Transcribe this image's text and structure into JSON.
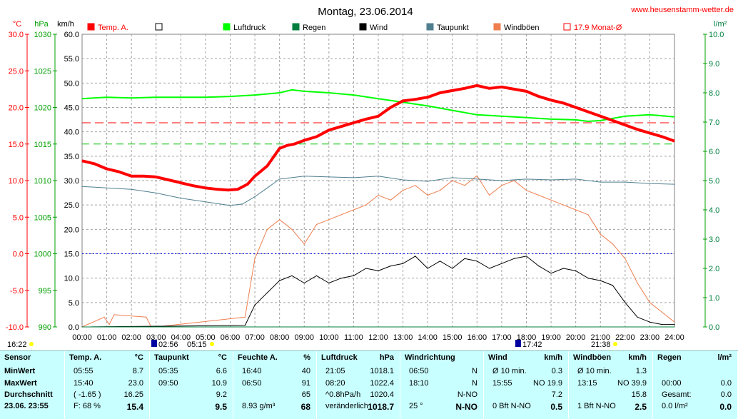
{
  "header": {
    "date_title": "Montag, 23.06.2014",
    "site": "www.heusenstamm-wetter.de"
  },
  "axes": {
    "unit_temp": "°C",
    "unit_press": "hPa",
    "unit_wind": "km/h",
    "unit_rain": "l/m²",
    "temp_ticks": [
      "30.0",
      "25.0",
      "20.0",
      "15.0",
      "10.0",
      "5.0",
      "0.0",
      "-5.0",
      "-10.0"
    ],
    "press_ticks": [
      "1030",
      "1025",
      "1020",
      "1015",
      "1010",
      "1005",
      "1000",
      "995",
      "990"
    ],
    "wind_ticks": [
      "60.0",
      "55.0",
      "50.0",
      "45.0",
      "40.0",
      "35.0",
      "30.0",
      "25.0",
      "20.0",
      "15.0",
      "10.0",
      "5.0",
      "0.0"
    ],
    "rain_ticks": [
      "10.0",
      "9.0",
      "8.0",
      "7.0",
      "6.0",
      "5.0",
      "4.0",
      "3.0",
      "2.0",
      "1.0",
      "0.0"
    ],
    "time_ticks": [
      "00:00",
      "01:00",
      "02:00",
      "03:00",
      "04:00",
      "05:00",
      "06:00",
      "07:00",
      "08:00",
      "09:00",
      "10:00",
      "11:00",
      "12:00",
      "13:00",
      "14:00",
      "15:00",
      "16:00",
      "17:00",
      "18:00",
      "19:00",
      "20:00",
      "21:00",
      "22:00",
      "23:00",
      "24:00"
    ]
  },
  "legend": [
    {
      "label": "Temp. A.",
      "color": "#ff0000",
      "style": "filled"
    },
    {
      "label": "",
      "color": "#000000",
      "style": "hollow"
    },
    {
      "label": "Luftdruck",
      "color": "#00ff00",
      "style": "filled"
    },
    {
      "label": "Regen",
      "color": "#007f3f",
      "style": "filled"
    },
    {
      "label": "Wind",
      "color": "#000000",
      "style": "filled"
    },
    {
      "label": "Taupunkt",
      "color": "#4f7f8f",
      "style": "filled"
    },
    {
      "label": "Windböen",
      "color": "#ef7f4f",
      "style": "filled"
    },
    {
      "label": "17.9 Monat-Ø",
      "color": "#ff0000",
      "style": "hollow"
    }
  ],
  "markers": {
    "day_start": "16:22",
    "sun_left": "02:56",
    "sunrise": "05:15",
    "sunset": "21:38",
    "sun_right": "17:42"
  },
  "chart_data": {
    "type": "line",
    "title": "Montag, 23.06.2014",
    "x_unit": "hour",
    "xlim": [
      0,
      24
    ],
    "ylim_temp": [
      -10,
      30
    ],
    "ylim_press": [
      990,
      1030
    ],
    "ylim_wind": [
      0,
      60
    ],
    "ylim_rain": [
      0,
      10
    ],
    "month_avg_temp": 17.9,
    "series": [
      {
        "name": "Temp. A.",
        "axis": "temp",
        "color": "#ff0000",
        "x": [
          0,
          0.5,
          1,
          1.5,
          2,
          2.5,
          3,
          3.5,
          4,
          4.5,
          5,
          5.5,
          5.92,
          6.3,
          6.7,
          7.0,
          7.5,
          8.0,
          8.3,
          8.6,
          9,
          9.5,
          10,
          10.5,
          11,
          11.5,
          12,
          12.5,
          13,
          13.5,
          14,
          14.5,
          15,
          15.5,
          16,
          16.5,
          17,
          17.5,
          18,
          18.5,
          19,
          19.5,
          20,
          20.5,
          21,
          21.5,
          22,
          22.5,
          23,
          23.5,
          24
        ],
        "y": [
          12.7,
          12.3,
          11.6,
          11.2,
          10.6,
          10.6,
          10.5,
          10.1,
          9.7,
          9.3,
          9.0,
          8.8,
          8.7,
          8.8,
          9.5,
          10.6,
          12.0,
          14.4,
          14.8,
          15.0,
          15.5,
          16.0,
          16.9,
          17.4,
          17.9,
          18.4,
          18.8,
          20.0,
          20.9,
          21.1,
          21.4,
          22.0,
          22.3,
          22.6,
          23.0,
          22.6,
          22.8,
          22.5,
          22.2,
          21.5,
          21.0,
          20.6,
          20.0,
          19.4,
          18.8,
          18.2,
          17.6,
          17.0,
          16.5,
          16.0,
          15.4
        ]
      },
      {
        "name": "Luftdruck",
        "axis": "press",
        "color": "#00ff00",
        "x": [
          0,
          1,
          2,
          3,
          4,
          5,
          6,
          7,
          8,
          8.5,
          9,
          10,
          11,
          12,
          13,
          14,
          15,
          16,
          17,
          18,
          19,
          20,
          20.5,
          21,
          22,
          23,
          24
        ],
        "y": [
          1021.2,
          1021.4,
          1021.3,
          1021.4,
          1021.4,
          1021.4,
          1021.5,
          1021.7,
          1022.0,
          1022.4,
          1022.2,
          1022.0,
          1021.7,
          1021.2,
          1020.7,
          1020.2,
          1019.6,
          1019.0,
          1018.8,
          1018.6,
          1018.4,
          1018.3,
          1018.1,
          1018.2,
          1018.8,
          1019.0,
          1018.7
        ]
      },
      {
        "name": "Taupunkt",
        "axis": "temp",
        "color": "#4f7f8f",
        "x": [
          0,
          1,
          2,
          3,
          4,
          5,
          6,
          6.5,
          7,
          7.5,
          8,
          9,
          10,
          11,
          12,
          13,
          14,
          15,
          16,
          17,
          18,
          19,
          20,
          21,
          22,
          23,
          24
        ],
        "y": [
          9.2,
          9.0,
          8.8,
          8.3,
          7.6,
          7.1,
          6.6,
          6.8,
          7.8,
          9.0,
          10.2,
          10.6,
          10.5,
          10.4,
          10.6,
          10.1,
          9.9,
          10.4,
          10.2,
          10.0,
          10.2,
          10.1,
          10.2,
          9.8,
          9.8,
          9.6,
          9.5
        ]
      },
      {
        "name": "Wind",
        "axis": "wind",
        "color": "#000000",
        "x": [
          0,
          6.6,
          7.0,
          7.5,
          8,
          8.5,
          9,
          9.5,
          10,
          10.5,
          11,
          11.5,
          12,
          12.5,
          13,
          13.5,
          14,
          14.5,
          15,
          15.5,
          16,
          16.5,
          17,
          17.5,
          18,
          18.5,
          19,
          19.5,
          20,
          20.5,
          21,
          21.5,
          22,
          22.5,
          23,
          23.5,
          24
        ],
        "y": [
          0,
          0.3,
          4.5,
          7.0,
          9.5,
          10.5,
          9.0,
          10.5,
          9.0,
          10.0,
          10.5,
          12.0,
          11.5,
          12.5,
          13.0,
          14.5,
          12.0,
          13.5,
          12.0,
          14.0,
          13.5,
          12.0,
          13.0,
          14.0,
          14.5,
          12.5,
          11.0,
          12.0,
          11.5,
          10.0,
          9.5,
          8.5,
          5.0,
          2.0,
          1.0,
          0.5,
          0.5
        ]
      },
      {
        "name": "Windböen",
        "axis": "wind",
        "color": "#ef7f4f",
        "x": [
          0,
          0.9,
          1.1,
          1.3,
          2.6,
          2.8,
          3.0,
          6.6,
          7.0,
          7.5,
          8,
          8.5,
          9,
          9.5,
          10,
          10.5,
          11,
          11.5,
          12,
          12.5,
          13,
          13.5,
          14,
          14.5,
          15,
          15.5,
          16,
          16.5,
          17,
          17.5,
          18,
          18.5,
          19,
          19.5,
          20,
          20.5,
          21,
          21.5,
          22,
          22.5,
          23,
          23.5,
          24
        ],
        "y": [
          0,
          2.0,
          0.5,
          2.5,
          2.0,
          0,
          0,
          2.0,
          14.0,
          20.0,
          22.0,
          20.0,
          17.0,
          21.0,
          22.0,
          23.0,
          24.0,
          25.0,
          27.0,
          26.0,
          28.0,
          29.0,
          27.0,
          28.0,
          30.0,
          29.0,
          31.0,
          27.0,
          29.0,
          30.0,
          28.0,
          27.0,
          26.0,
          25.0,
          24.0,
          23.0,
          19.0,
          17.0,
          14.0,
          9.0,
          5.0,
          3.0,
          1.0
        ]
      },
      {
        "name": "Regen",
        "axis": "rain",
        "color": "#007f3f",
        "x": [
          0,
          24
        ],
        "y": [
          0,
          0
        ]
      }
    ]
  },
  "panel": {
    "columns": [
      {
        "title": "Sensor",
        "unit": "",
        "rows": [
          [
            "MinWert",
            ""
          ],
          [
            "MaxWert",
            ""
          ],
          [
            "Durchschnitt",
            ""
          ],
          [
            "23.06. 23:55",
            ""
          ]
        ]
      },
      {
        "title": "Temp. A.",
        "unit": "°C",
        "rows": [
          [
            "05:55",
            "8.7"
          ],
          [
            "15:40",
            "23.0"
          ],
          [
            "( -1.65 )",
            "16.25"
          ],
          [
            "F: 68 %",
            "15.4"
          ]
        ]
      },
      {
        "title": "Taupunkt",
        "unit": "°C",
        "rows": [
          [
            "05:35",
            "6.6"
          ],
          [
            "09:50",
            "10.9"
          ],
          [
            "",
            "9.2"
          ],
          [
            "",
            "9.5"
          ]
        ]
      },
      {
        "title": "Feuchte A.",
        "unit": "%",
        "rows": [
          [
            "16:40",
            "40"
          ],
          [
            "06:50",
            "91"
          ],
          [
            "",
            "65"
          ],
          [
            "8.93 g/m³",
            "68"
          ]
        ]
      },
      {
        "title": "Luftdruck",
        "unit": "hPa",
        "rows": [
          [
            "21:05",
            "1018.1"
          ],
          [
            "08:20",
            "1022.4"
          ],
          [
            "^0.8hPa/h",
            "1020.4"
          ],
          [
            "veränderlich",
            "1018.7"
          ]
        ]
      },
      {
        "title": "Windrichtung",
        "unit": "",
        "rows": [
          [
            "06:50",
            "N"
          ],
          [
            "18:10",
            "N"
          ],
          [
            "",
            "N-NO"
          ],
          [
            "25 °",
            "N-NO"
          ]
        ]
      },
      {
        "title": "Wind",
        "unit": "km/h",
        "rows": [
          [
            "Ø 10 min.",
            "0.3"
          ],
          [
            "15:55",
            "NO 19.9"
          ],
          [
            "",
            "7.2"
          ],
          [
            "0 Bft N-NO",
            "0.5"
          ]
        ]
      },
      {
        "title": "Windböen",
        "unit": "km/h",
        "rows": [
          [
            "Ø 10 min.",
            "1.3"
          ],
          [
            "13:15",
            "NO 39.9"
          ],
          [
            "",
            "15.8"
          ],
          [
            "1 Bft N-NO",
            "2.5"
          ]
        ]
      },
      {
        "title": "Regen",
        "unit": "l/m²",
        "rows": [
          [
            "",
            ""
          ],
          [
            "00:00",
            "0.0"
          ],
          [
            "Gesamt:",
            "0.0"
          ],
          [
            "0.0 l/m²",
            "0.0"
          ]
        ]
      }
    ]
  }
}
